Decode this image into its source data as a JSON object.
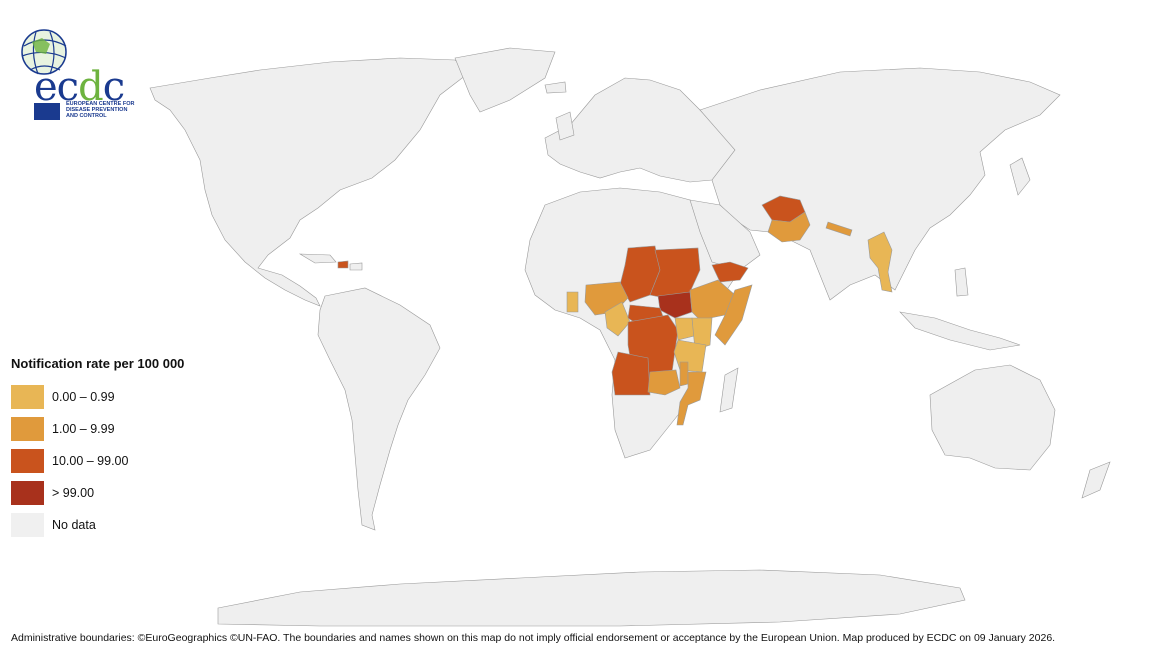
{
  "brand": {
    "name_prefix": "ec",
    "name_accent": "d",
    "name_suffix": "c",
    "subtitle": "EUROPEAN CENTRE FOR DISEASE PREVENTION AND CONTROL"
  },
  "legend": {
    "title": "Notification rate per 100 000",
    "items": [
      {
        "label": "0.00 – 0.99",
        "color": "#e8b655"
      },
      {
        "label": "1.00 – 9.99",
        "color": "#e09a3c"
      },
      {
        "label": "10.00 – 99.00",
        "color": "#c9531d"
      },
      {
        "label": "> 99.00",
        "color": "#a8311c"
      },
      {
        "label": "No data",
        "color": "#f0f0f0"
      }
    ]
  },
  "footer": "Administrative boundaries: ©EuroGeographics ©UN-FAO. The boundaries and names shown on this map do not imply official endorsement or acceptance by the European Union. Map produced by ECDC on 09 January 2026.",
  "colors": {
    "land": "#efefef",
    "border": "#9a9a9a",
    "c1": "#e8b655",
    "c2": "#e09a3c",
    "c3": "#c9531d",
    "c4": "#a8311c"
  }
}
